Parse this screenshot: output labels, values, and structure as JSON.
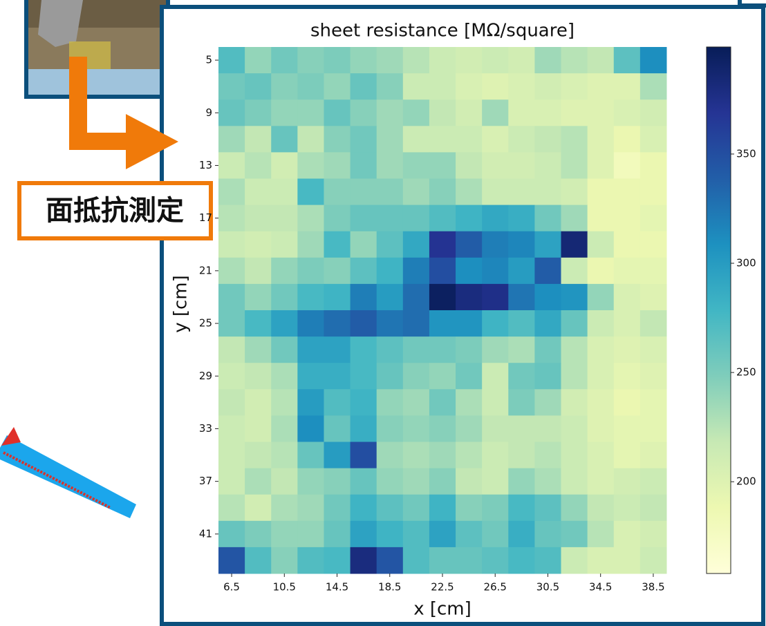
{
  "annotation": "面抵抗測定",
  "chart_data": {
    "type": "heatmap",
    "title": "sheet resistance [MΩ/square]",
    "x_label": "x [cm]",
    "y_label": "y [cm]",
    "x": [
      6.5,
      8.5,
      10.5,
      12.5,
      14.5,
      16.5,
      18.5,
      20.5,
      22.5,
      24.5,
      26.5,
      28.5,
      30.5,
      32.5,
      34.5,
      36.5,
      38.5
    ],
    "y": [
      5,
      7,
      9,
      11,
      13,
      15,
      17,
      19,
      21,
      23,
      25,
      27,
      29,
      31,
      33,
      35,
      37,
      39,
      41,
      43
    ],
    "xlim": [
      5.5,
      39.5
    ],
    "ylim": [
      44,
      4
    ],
    "xticks": [
      6.5,
      10.5,
      14.5,
      18.5,
      22.5,
      26.5,
      30.5,
      34.5,
      38.5
    ],
    "yticks": [
      5,
      9,
      13,
      17,
      21,
      25,
      29,
      33,
      37,
      41
    ],
    "clim": [
      158,
      399
    ],
    "cticks": [
      200,
      250,
      300,
      350
    ],
    "colormap": [
      "#ffffd9",
      "#edf8b1",
      "#c7e9b4",
      "#7fcdbb",
      "#41b6c4",
      "#1d91c0",
      "#225ea8",
      "#253494",
      "#081d58"
    ],
    "values": [
      [
        270,
        240,
        255,
        245,
        250,
        240,
        235,
        225,
        215,
        210,
        215,
        210,
        235,
        225,
        220,
        265,
        310
      ],
      [
        255,
        260,
        245,
        250,
        240,
        260,
        245,
        215,
        215,
        205,
        200,
        205,
        210,
        205,
        200,
        200,
        230
      ],
      [
        260,
        250,
        240,
        240,
        260,
        245,
        235,
        240,
        220,
        210,
        235,
        205,
        205,
        200,
        200,
        205,
        210
      ],
      [
        235,
        220,
        260,
        220,
        245,
        255,
        235,
        215,
        215,
        215,
        205,
        215,
        220,
        225,
        200,
        190,
        205
      ],
      [
        215,
        225,
        210,
        230,
        235,
        255,
        235,
        240,
        240,
        220,
        210,
        210,
        215,
        225,
        200,
        180,
        190
      ],
      [
        230,
        215,
        215,
        275,
        245,
        245,
        245,
        235,
        245,
        230,
        215,
        215,
        215,
        210,
        190,
        190,
        190
      ],
      [
        225,
        220,
        220,
        230,
        250,
        260,
        260,
        260,
        270,
        280,
        290,
        285,
        255,
        235,
        190,
        190,
        195
      ],
      [
        215,
        210,
        215,
        235,
        275,
        240,
        265,
        290,
        370,
        340,
        320,
        315,
        295,
        385,
        215,
        190,
        190
      ],
      [
        230,
        220,
        240,
        250,
        245,
        265,
        280,
        320,
        350,
        310,
        315,
        300,
        340,
        215,
        190,
        195,
        195
      ],
      [
        255,
        240,
        255,
        275,
        280,
        320,
        300,
        330,
        395,
        380,
        375,
        325,
        310,
        305,
        240,
        205,
        200
      ],
      [
        255,
        275,
        295,
        320,
        330,
        340,
        325,
        330,
        305,
        305,
        280,
        270,
        290,
        260,
        215,
        205,
        220
      ],
      [
        220,
        235,
        255,
        295,
        295,
        275,
        265,
        255,
        255,
        250,
        235,
        230,
        255,
        225,
        205,
        200,
        205
      ],
      [
        215,
        220,
        230,
        285,
        285,
        275,
        260,
        245,
        240,
        255,
        215,
        255,
        260,
        225,
        205,
        195,
        200
      ],
      [
        220,
        210,
        225,
        300,
        270,
        280,
        240,
        235,
        255,
        230,
        215,
        250,
        235,
        210,
        200,
        190,
        195
      ],
      [
        215,
        210,
        230,
        310,
        260,
        285,
        245,
        240,
        245,
        235,
        220,
        220,
        220,
        215,
        200,
        195,
        195
      ],
      [
        215,
        220,
        225,
        260,
        300,
        350,
        235,
        230,
        235,
        225,
        215,
        220,
        225,
        215,
        205,
        195,
        200
      ],
      [
        215,
        230,
        220,
        240,
        245,
        260,
        240,
        235,
        245,
        220,
        215,
        240,
        230,
        215,
        205,
        210,
        215
      ],
      [
        225,
        210,
        230,
        235,
        255,
        280,
        265,
        255,
        280,
        245,
        250,
        275,
        265,
        240,
        220,
        215,
        220
      ],
      [
        260,
        250,
        240,
        240,
        260,
        295,
        280,
        270,
        295,
        265,
        255,
        285,
        260,
        255,
        225,
        205,
        210
      ],
      [
        345,
        270,
        245,
        270,
        275,
        380,
        345,
        270,
        260,
        260,
        265,
        275,
        270,
        215,
        205,
        205,
        215
      ]
    ]
  }
}
